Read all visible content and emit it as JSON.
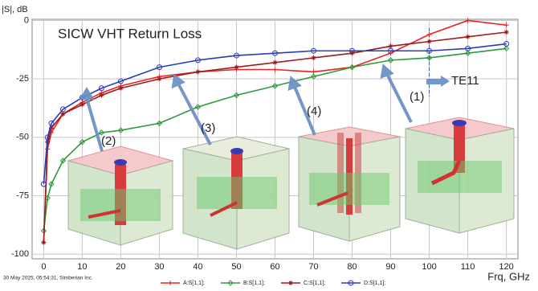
{
  "chart_data": {
    "type": "line",
    "title": "SICW VHT Return Loss",
    "y_label": "|S|, dB",
    "x_label": "Frq, GHz",
    "footer": "30 May 2025, 05:54:31, Simberian Inc.",
    "annotations": [
      "(1)",
      "(2)",
      "(3)",
      "(4)",
      "TE11"
    ],
    "marker_line_x": 100,
    "grid": true,
    "xlim": [
      -3,
      123
    ],
    "ylim": [
      -102,
      0.5
    ],
    "xticks": [
      0,
      10,
      20,
      30,
      40,
      50,
      60,
      70,
      80,
      90,
      100,
      110,
      120
    ],
    "yticks": [
      0,
      -25,
      -50,
      -75,
      -100
    ],
    "x": [
      0,
      1,
      2,
      5,
      10,
      15,
      20,
      30,
      40,
      50,
      60,
      70,
      80,
      90,
      100,
      110,
      120
    ],
    "series": [
      {
        "name": "A:S[1,1];",
        "color": "#e8231f",
        "marker": "plus",
        "values": [
          -95,
          -55,
          -48,
          -40,
          -35,
          -31,
          -28,
          -24,
          -22,
          -21,
          -21,
          -22,
          -20,
          -14,
          -6,
          0,
          -2
        ]
      },
      {
        "name": "B:S[1,1];",
        "color": "#2e9a3a",
        "marker": "diamond",
        "values": [
          -90,
          -76,
          -70,
          -60,
          -52,
          -48,
          -47,
          -44,
          -37,
          -32,
          -28,
          -24,
          -20,
          -17,
          -16,
          -14,
          -12
        ]
      },
      {
        "name": "C:S[1,1];",
        "color": "#9b1c1c",
        "marker": "star",
        "values": [
          -95,
          -52,
          -46,
          -40,
          -36,
          -32,
          -29,
          -25,
          -22,
          -20,
          -18,
          -16,
          -14,
          -11,
          -9,
          -7,
          -5
        ]
      },
      {
        "name": "D:S[1,1];",
        "color": "#2b3bb8",
        "marker": "circle",
        "values": [
          -70,
          -50,
          -44,
          -38,
          -33,
          -29,
          -26,
          -20,
          -17,
          -15,
          -14,
          -13,
          -13,
          -13,
          -13,
          -12,
          -10
        ]
      }
    ]
  }
}
